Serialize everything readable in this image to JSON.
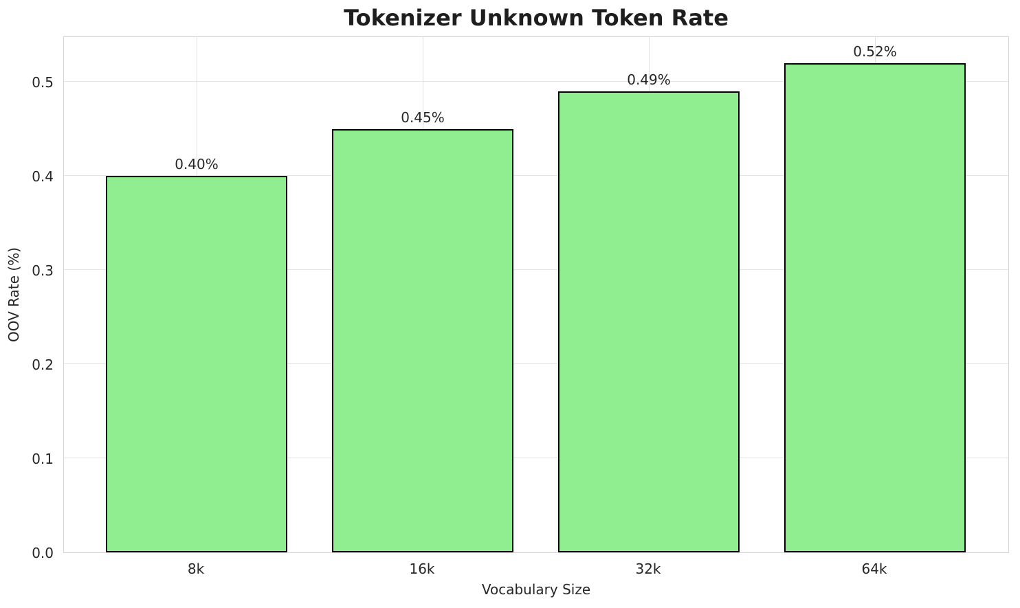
{
  "chart_data": {
    "type": "bar",
    "title": "Tokenizer Unknown Token Rate",
    "xlabel": "Vocabulary Size",
    "ylabel": "OOV Rate (%)",
    "categories": [
      "8k",
      "16k",
      "32k",
      "64k"
    ],
    "values": [
      0.4,
      0.45,
      0.49,
      0.52
    ],
    "bar_labels": [
      "0.40%",
      "0.45%",
      "0.49%",
      "0.52%"
    ],
    "y_ticks": [
      0.0,
      0.1,
      0.2,
      0.3,
      0.4,
      0.5
    ],
    "y_tick_labels": [
      "0.0",
      "0.1",
      "0.2",
      "0.3",
      "0.4",
      "0.5"
    ],
    "ylim": [
      0,
      0.549
    ],
    "grid": true,
    "legend_position": "none",
    "colors": {
      "bar_fill": "#90EE90",
      "bar_edge": "#000000",
      "grid_h": "#e4e4e4",
      "grid_v": "#dedede",
      "spine": "#d4d4d4",
      "text": "#262626"
    }
  }
}
